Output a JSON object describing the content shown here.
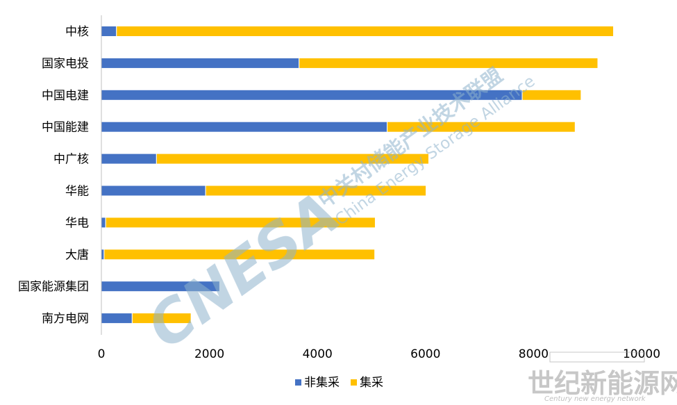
{
  "chart_data": {
    "type": "bar",
    "orientation": "horizontal",
    "stacked": true,
    "categories": [
      "中核",
      "国家电投",
      "中国电建",
      "中国能建",
      "中广核",
      "华能",
      "华电",
      "大唐",
      "国家能源集团",
      "南方电网"
    ],
    "series": [
      {
        "name": "非集采",
        "color": "#4472C4",
        "values": [
          280,
          3660,
          7790,
          5290,
          1020,
          1930,
          80,
          50,
          2190,
          570
        ]
      },
      {
        "name": "集采",
        "color": "#FFC000",
        "values": [
          9200,
          5530,
          1090,
          3480,
          5040,
          4080,
          4990,
          5010,
          0,
          1090
        ]
      }
    ],
    "xlim": [
      0,
      10000
    ],
    "xticks": [
      0,
      2000,
      4000,
      6000,
      8000,
      10000
    ],
    "grid": false,
    "legend_position": "bottom"
  },
  "watermarks": {
    "cnesa_logo": "CNESA",
    "cnesa_cn": "中关村储能产业技术联盟",
    "cnesa_en": "China Energy Storage Alliance",
    "century_cn": "世纪新能源网",
    "century_en": "Century new energy network"
  }
}
